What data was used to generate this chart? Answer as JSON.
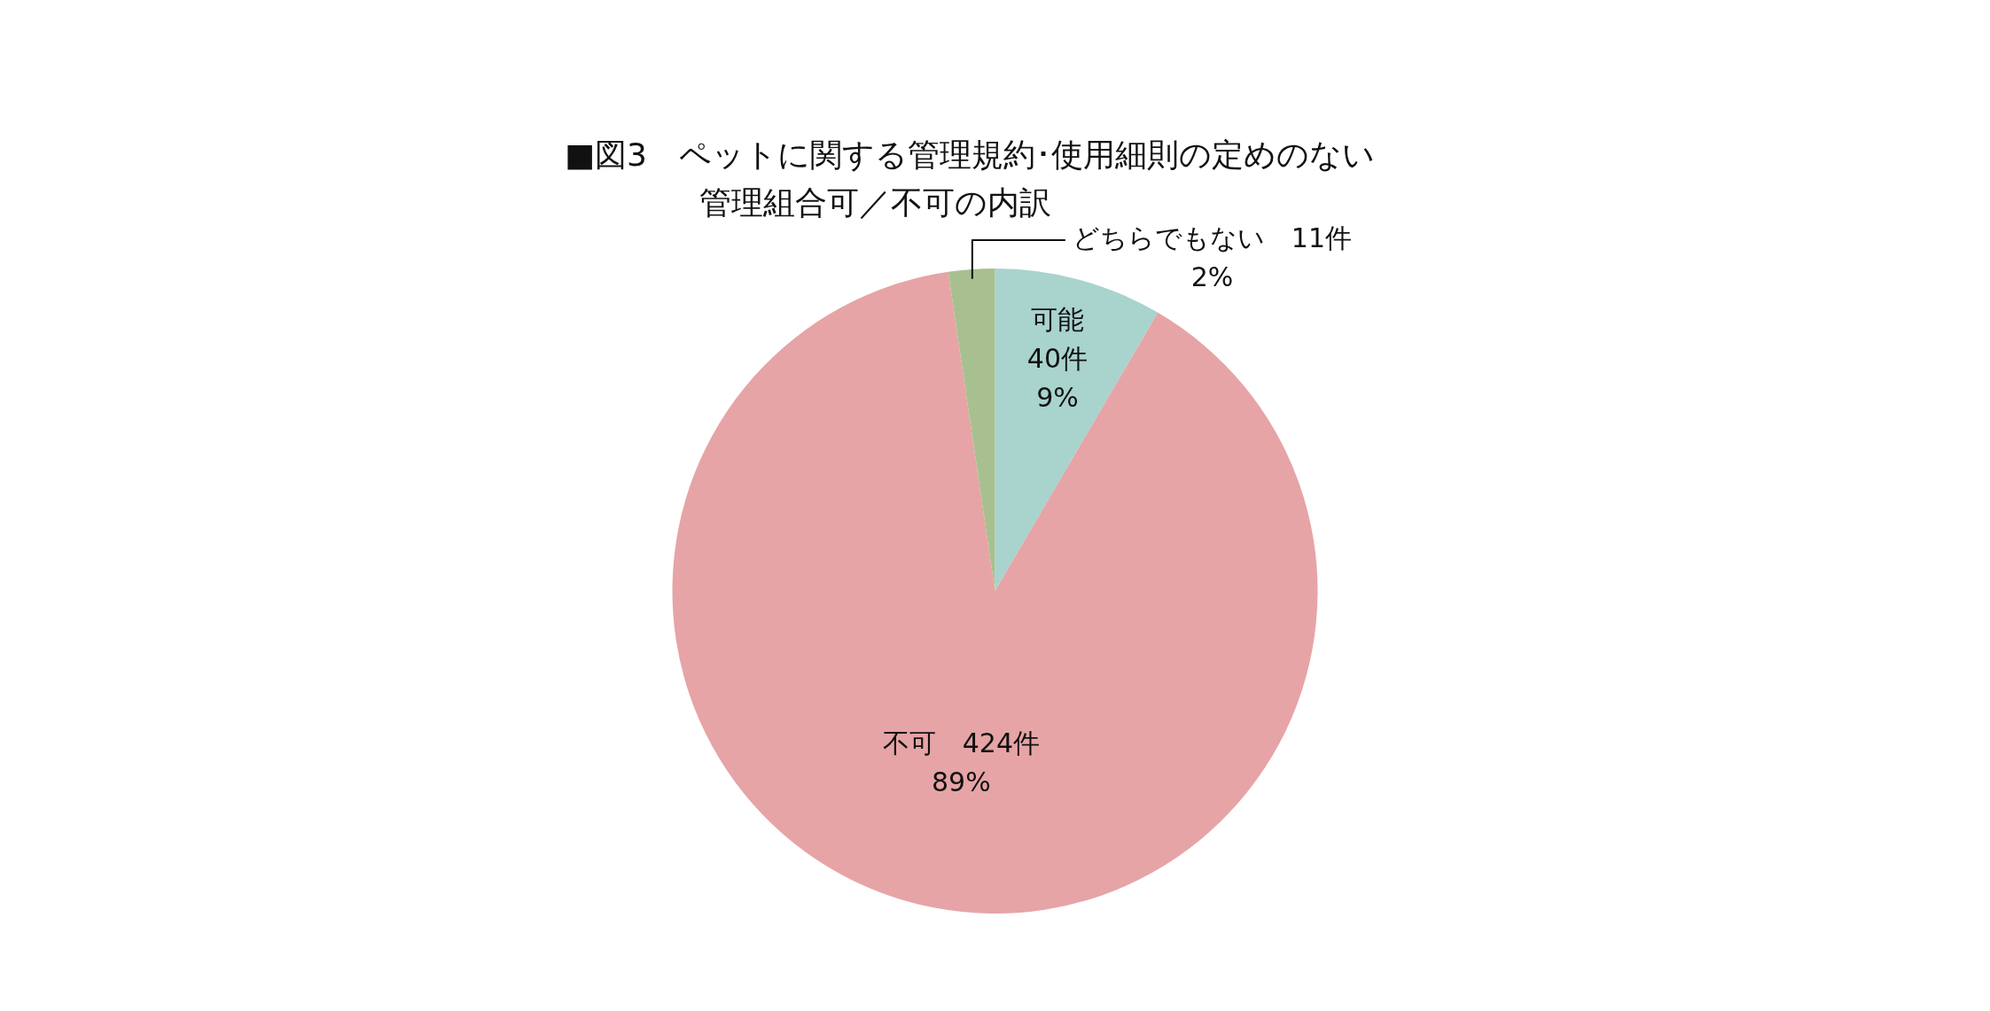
{
  "chart_data": {
    "type": "pie",
    "title": "■図3　ペットに関する管理規約･使用細則の定めのない管理組合可／不可の内訳",
    "categories": [
      "可能",
      "不可",
      "どちらでもない"
    ],
    "values": [
      40,
      424,
      11
    ],
    "colors": [
      "#a9d3cd",
      "#e6a4a6",
      "#a8c08f"
    ],
    "value_labels": [
      "40件\n9%",
      "424件\n89%",
      "11件\n2%"
    ],
    "legend": false
  }
}
